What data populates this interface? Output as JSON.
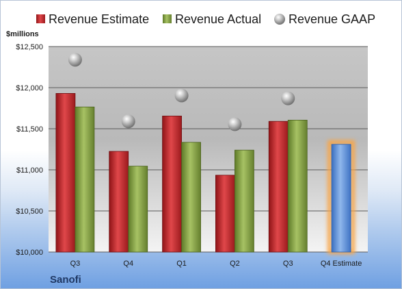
{
  "chart_data": {
    "type": "bar",
    "title": "",
    "company": "Sanofi",
    "ylabel": "$millions",
    "ylim": [
      10000,
      12500
    ],
    "yticks": [
      10000,
      10500,
      11000,
      11500,
      12000,
      12500
    ],
    "ytick_labels": [
      "$10,000",
      "$10,500",
      "$11,000",
      "$11,500",
      "$12,000",
      "$12,500"
    ],
    "categories": [
      "Q3",
      "Q4",
      "Q1",
      "Q2",
      "Q3",
      "Q4 Estimate"
    ],
    "legend_position": "top",
    "grid": true,
    "series": [
      {
        "name": "Revenue Estimate",
        "kind": "bar",
        "color": "#c0282c",
        "values": [
          11930,
          11225,
          11655,
          10935,
          11590,
          null
        ]
      },
      {
        "name": "Revenue Actual",
        "kind": "bar",
        "color": "#7e9a3e",
        "values": [
          11765,
          11045,
          11335,
          11240,
          11605,
          null
        ]
      },
      {
        "name": "Revenue GAAP",
        "kind": "marker",
        "color": "#a8a8a8",
        "values": [
          12340,
          11590,
          11905,
          11555,
          11870,
          null
        ]
      },
      {
        "name": "",
        "kind": "bar",
        "color": "#5b8ed6",
        "highlight": "#f7a64a",
        "values": [
          null,
          null,
          null,
          null,
          null,
          11310
        ]
      }
    ]
  }
}
